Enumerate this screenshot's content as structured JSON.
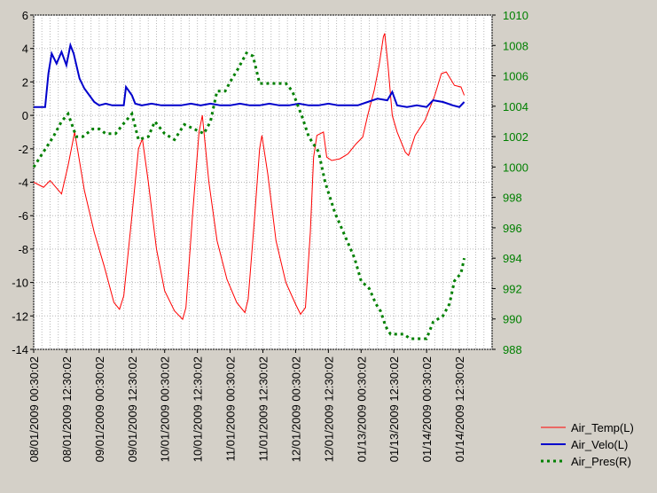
{
  "chart_data": {
    "type": "line",
    "title": "",
    "xlabel": "",
    "x_categories": [
      "08/01/2009 00:30:02",
      "08/01/2009 12:30:02",
      "09/01/2009 00:30:02",
      "09/01/2009 12:30:02",
      "10/01/2009 00:30:02",
      "10/01/2009 12:30:02",
      "11/01/2009 00:30:02",
      "11/01/2009 12:30:02",
      "12/01/2009 00:30:02",
      "12/01/2009 12:30:02",
      "01/13/2009 00:30:02",
      "01/13/2009 12:30:02",
      "01/14/2009 00:30:02",
      "01/14/2009 12:30:02"
    ],
    "x_range": [
      0,
      14
    ],
    "y_left": {
      "min": -14,
      "max": 6,
      "step": 2,
      "ticks": [
        "-14",
        "-12",
        "-10",
        "-8",
        "-6",
        "-4",
        "-2",
        "0",
        "2",
        "4",
        "6"
      ],
      "color": "#000000"
    },
    "y_right": {
      "min": 988,
      "max": 1010,
      "step": 2,
      "ticks": [
        "988",
        "990",
        "992",
        "994",
        "996",
        "998",
        "1000",
        "1002",
        "1004",
        "1006",
        "1008",
        "1010"
      ],
      "color": "#008000"
    },
    "grid": true,
    "legend_position": "bottom-right",
    "series": [
      {
        "name": "Air_Temp(L)",
        "axis": "left",
        "color": "#ff0000",
        "style": "solid",
        "points": [
          [
            0,
            -4
          ],
          [
            0.3,
            -4.3
          ],
          [
            0.5,
            -3.9
          ],
          [
            0.85,
            -4.7
          ],
          [
            1.05,
            -3
          ],
          [
            1.25,
            -1
          ],
          [
            1.55,
            -4.5
          ],
          [
            1.85,
            -7
          ],
          [
            2.15,
            -9
          ],
          [
            2.45,
            -11.2
          ],
          [
            2.62,
            -11.6
          ],
          [
            2.75,
            -10.8
          ],
          [
            3.0,
            -6
          ],
          [
            3.2,
            -2
          ],
          [
            3.32,
            -1.4
          ],
          [
            3.5,
            -4
          ],
          [
            3.75,
            -8
          ],
          [
            4.0,
            -10.5
          ],
          [
            4.3,
            -11.7
          ],
          [
            4.55,
            -12.2
          ],
          [
            4.65,
            -11.5
          ],
          [
            4.85,
            -6
          ],
          [
            5.05,
            -1
          ],
          [
            5.15,
            0
          ],
          [
            5.35,
            -4
          ],
          [
            5.6,
            -7.5
          ],
          [
            5.9,
            -9.8
          ],
          [
            6.2,
            -11.2
          ],
          [
            6.45,
            -11.8
          ],
          [
            6.55,
            -11
          ],
          [
            6.75,
            -6
          ],
          [
            6.9,
            -2
          ],
          [
            6.97,
            -1.2
          ],
          [
            7.15,
            -3.5
          ],
          [
            7.4,
            -7.5
          ],
          [
            7.7,
            -10
          ],
          [
            8.0,
            -11.3
          ],
          [
            8.15,
            -11.9
          ],
          [
            8.3,
            -11.5
          ],
          [
            8.45,
            -7
          ],
          [
            8.55,
            -2.5
          ],
          [
            8.65,
            -1.2
          ],
          [
            8.85,
            -1
          ],
          [
            8.95,
            -2.5
          ],
          [
            9.1,
            -2.7
          ],
          [
            9.35,
            -2.6
          ],
          [
            9.6,
            -2.3
          ],
          [
            9.85,
            -1.7
          ],
          [
            10.05,
            -1.3
          ],
          [
            10.2,
            0
          ],
          [
            10.4,
            1.5
          ],
          [
            10.55,
            3
          ],
          [
            10.68,
            4.7
          ],
          [
            10.72,
            4.9
          ],
          [
            10.82,
            3
          ],
          [
            10.95,
            0
          ],
          [
            11.1,
            -1
          ],
          [
            11.35,
            -2.2
          ],
          [
            11.45,
            -2.4
          ],
          [
            11.65,
            -1.2
          ],
          [
            11.95,
            -0.3
          ],
          [
            12.25,
            1.2
          ],
          [
            12.45,
            2.5
          ],
          [
            12.6,
            2.6
          ],
          [
            12.85,
            1.8
          ],
          [
            13.05,
            1.7
          ],
          [
            13.15,
            1.2
          ]
        ]
      },
      {
        "name": "Air_Velo(L)",
        "axis": "left",
        "color": "#0000cc",
        "style": "solid",
        "points": [
          [
            0,
            0.5
          ],
          [
            0.35,
            0.5
          ],
          [
            0.45,
            2.5
          ],
          [
            0.55,
            3.7
          ],
          [
            0.7,
            3.1
          ],
          [
            0.85,
            3.8
          ],
          [
            1.0,
            3.0
          ],
          [
            1.12,
            4.2
          ],
          [
            1.22,
            3.7
          ],
          [
            1.4,
            2.2
          ],
          [
            1.55,
            1.6
          ],
          [
            1.7,
            1.2
          ],
          [
            1.85,
            0.8
          ],
          [
            2.0,
            0.6
          ],
          [
            2.2,
            0.7
          ],
          [
            2.4,
            0.6
          ],
          [
            2.6,
            0.6
          ],
          [
            2.75,
            0.6
          ],
          [
            2.82,
            1.7
          ],
          [
            3.0,
            1.2
          ],
          [
            3.1,
            0.7
          ],
          [
            3.3,
            0.6
          ],
          [
            3.6,
            0.7
          ],
          [
            3.9,
            0.6
          ],
          [
            4.2,
            0.6
          ],
          [
            4.5,
            0.6
          ],
          [
            4.8,
            0.7
          ],
          [
            5.1,
            0.6
          ],
          [
            5.4,
            0.7
          ],
          [
            5.7,
            0.6
          ],
          [
            6.0,
            0.6
          ],
          [
            6.3,
            0.7
          ],
          [
            6.6,
            0.6
          ],
          [
            6.9,
            0.6
          ],
          [
            7.2,
            0.7
          ],
          [
            7.5,
            0.6
          ],
          [
            7.8,
            0.6
          ],
          [
            8.1,
            0.7
          ],
          [
            8.4,
            0.6
          ],
          [
            8.7,
            0.6
          ],
          [
            9.0,
            0.7
          ],
          [
            9.3,
            0.6
          ],
          [
            9.6,
            0.6
          ],
          [
            9.9,
            0.6
          ],
          [
            10.2,
            0.8
          ],
          [
            10.5,
            1.0
          ],
          [
            10.8,
            0.9
          ],
          [
            10.95,
            1.4
          ],
          [
            11.1,
            0.6
          ],
          [
            11.4,
            0.5
          ],
          [
            11.7,
            0.6
          ],
          [
            12.0,
            0.5
          ],
          [
            12.2,
            0.9
          ],
          [
            12.5,
            0.8
          ],
          [
            12.8,
            0.6
          ],
          [
            13.0,
            0.5
          ],
          [
            13.15,
            0.8
          ]
        ]
      },
      {
        "name": "Air_Pres(R)",
        "axis": "right",
        "color": "#008000",
        "style": "dotted",
        "points": [
          [
            0,
            1000
          ],
          [
            0.3,
            1001
          ],
          [
            0.6,
            1002
          ],
          [
            0.85,
            1003
          ],
          [
            1.05,
            1003.5
          ],
          [
            1.3,
            1002
          ],
          [
            1.5,
            1002
          ],
          [
            1.8,
            1002.5
          ],
          [
            2.0,
            1002.5
          ],
          [
            2.2,
            1002.2
          ],
          [
            2.5,
            1002.2
          ],
          [
            2.8,
            1003
          ],
          [
            3.0,
            1003.5
          ],
          [
            3.2,
            1001.8
          ],
          [
            3.5,
            1002
          ],
          [
            3.7,
            1003
          ],
          [
            4.0,
            1002.2
          ],
          [
            4.3,
            1001.8
          ],
          [
            4.6,
            1002.8
          ],
          [
            4.9,
            1002.5
          ],
          [
            5.2,
            1002.2
          ],
          [
            5.4,
            1003
          ],
          [
            5.6,
            1005
          ],
          [
            5.85,
            1005
          ],
          [
            6.0,
            1005.6
          ],
          [
            6.25,
            1006.5
          ],
          [
            6.5,
            1007.5
          ],
          [
            6.7,
            1007.3
          ],
          [
            6.9,
            1005.5
          ],
          [
            7.1,
            1005.5
          ],
          [
            7.4,
            1005.5
          ],
          [
            7.7,
            1005.5
          ],
          [
            7.9,
            1005
          ],
          [
            8.2,
            1003.3
          ],
          [
            8.4,
            1002
          ],
          [
            8.7,
            1001
          ],
          [
            8.9,
            999
          ],
          [
            9.2,
            997
          ],
          [
            9.6,
            995
          ],
          [
            9.8,
            994
          ],
          [
            10.0,
            992.5
          ],
          [
            10.25,
            992
          ],
          [
            10.45,
            991
          ],
          [
            10.6,
            990.5
          ],
          [
            10.75,
            989.5
          ],
          [
            10.9,
            989
          ],
          [
            11.1,
            989
          ],
          [
            11.3,
            989
          ],
          [
            11.5,
            988.7
          ],
          [
            12.0,
            988.7
          ],
          [
            12.2,
            989.8
          ],
          [
            12.5,
            990.2
          ],
          [
            12.7,
            991
          ],
          [
            12.85,
            992.5
          ],
          [
            13.05,
            993
          ],
          [
            13.15,
            994
          ]
        ]
      }
    ]
  }
}
